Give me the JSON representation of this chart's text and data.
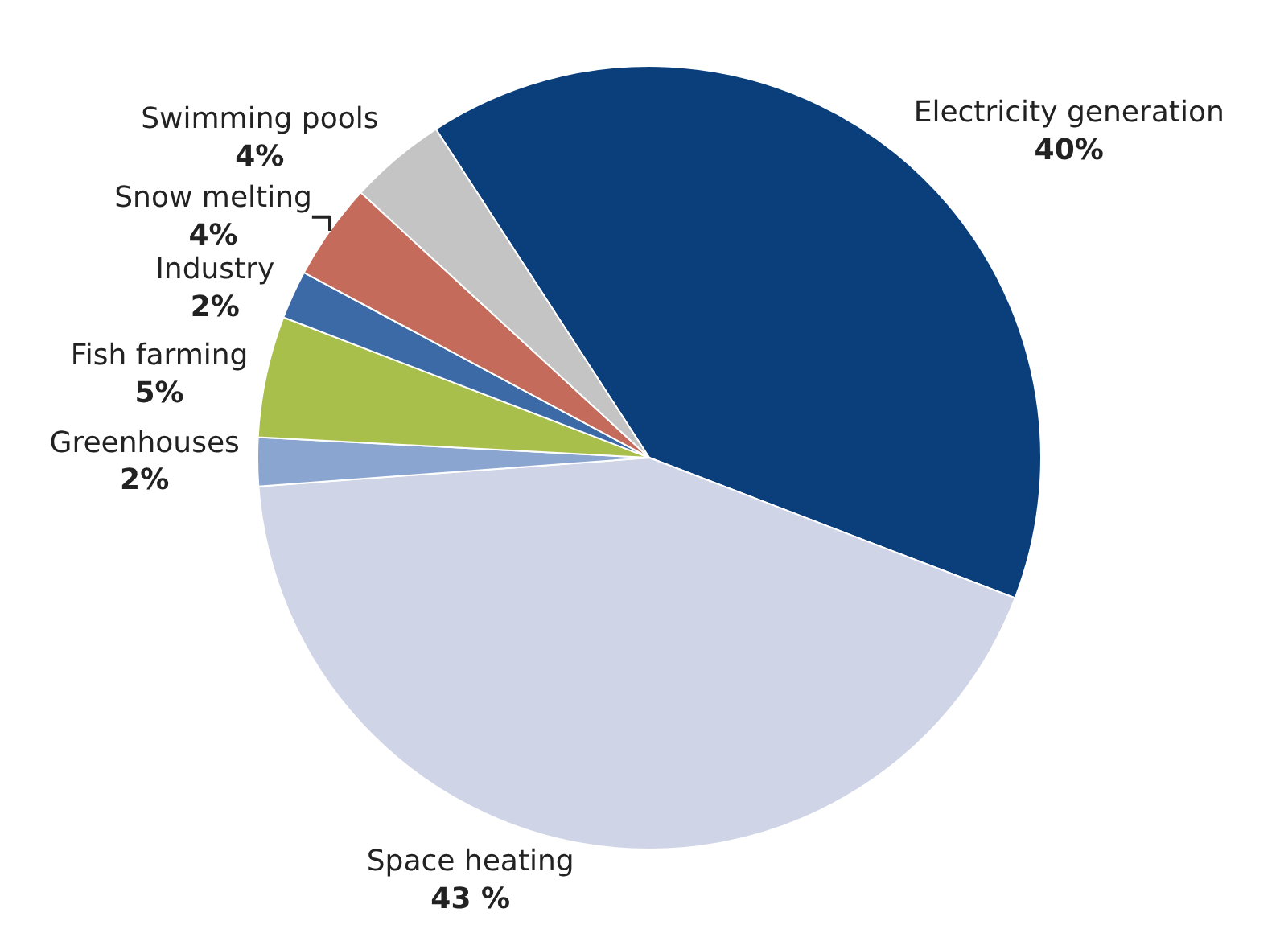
{
  "chart_data": {
    "type": "pie",
    "categories": [
      "Electricity generation",
      "Space heating",
      "Greenhouses",
      "Fish farming",
      "Industry",
      "Snow melting",
      "Swimming pools"
    ],
    "values": [
      40,
      43,
      2,
      5,
      2,
      4,
      4
    ],
    "colors": [
      "#0b3f7c",
      "#d0d4e7",
      "#8aa5cf",
      "#a9bf4b",
      "#3b6aa6",
      "#c46b5b",
      "#c4c4c4"
    ],
    "value_labels": [
      "40%",
      "43 %",
      "2%",
      "5%",
      "2%",
      "4%",
      "4%"
    ]
  }
}
